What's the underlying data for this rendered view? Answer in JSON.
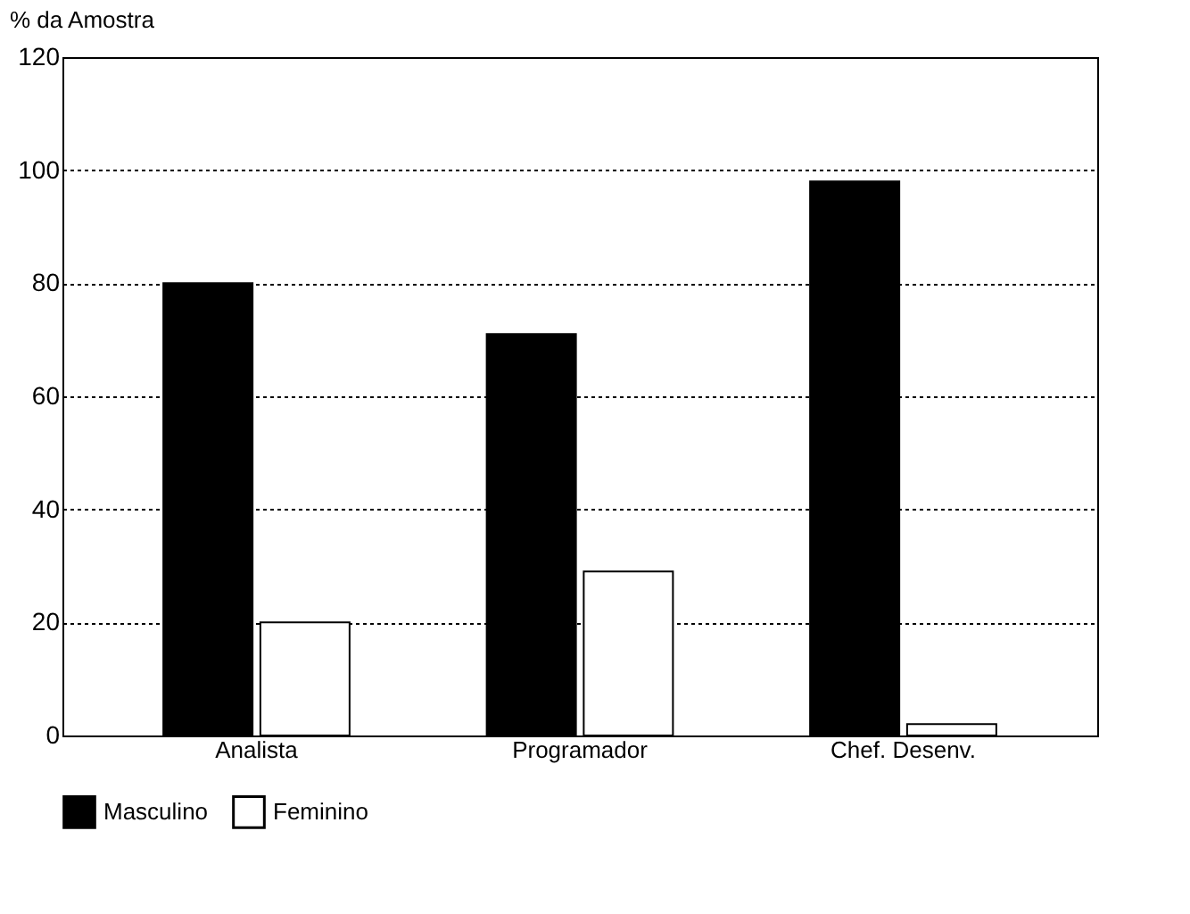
{
  "chart_data": {
    "type": "bar",
    "ylabel": "% da Amostra",
    "categories": [
      "Analista",
      "Programador",
      "Chef. Desenv."
    ],
    "series": [
      {
        "name": "Masculino",
        "color": "#000000",
        "values": [
          80,
          71,
          98
        ]
      },
      {
        "name": "Feminino",
        "color": "#ffffff",
        "values": [
          20,
          29,
          2
        ]
      }
    ],
    "ylim": [
      0,
      120
    ],
    "yticks": [
      0,
      20,
      40,
      60,
      80,
      100,
      120
    ],
    "grid": "y",
    "legend": "bottom"
  }
}
